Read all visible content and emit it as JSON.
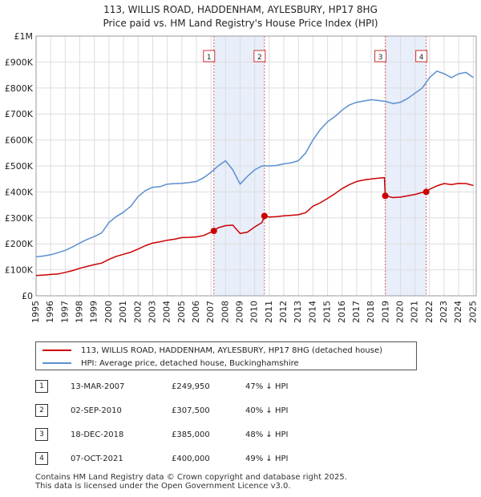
{
  "chart_data": {
    "type": "line",
    "title_line1": "113, WILLIS ROAD, HADDENHAM, AYLESBURY, HP17 8HG",
    "title_line2": "Price paid vs. HM Land Registry's House Price Index (HPI)",
    "xlabel": "",
    "ylabel": "",
    "xlim": [
      1995,
      2025.2
    ],
    "ylim": [
      0,
      1000000
    ],
    "grid": true,
    "y_ticks": [
      {
        "value": 0,
        "label": "£0"
      },
      {
        "value": 100000,
        "label": "£100K"
      },
      {
        "value": 200000,
        "label": "£200K"
      },
      {
        "value": 300000,
        "label": "£300K"
      },
      {
        "value": 400000,
        "label": "£400K"
      },
      {
        "value": 500000,
        "label": "£500K"
      },
      {
        "value": 600000,
        "label": "£600K"
      },
      {
        "value": 700000,
        "label": "£700K"
      },
      {
        "value": 800000,
        "label": "£800K"
      },
      {
        "value": 900000,
        "label": "£900K"
      },
      {
        "value": 1000000,
        "label": "£1M"
      }
    ],
    "x_ticks": [
      "1995",
      "1996",
      "1997",
      "1998",
      "1999",
      "2000",
      "2001",
      "2002",
      "2003",
      "2004",
      "2005",
      "2006",
      "2007",
      "2008",
      "2009",
      "2010",
      "2011",
      "2012",
      "2013",
      "2014",
      "2015",
      "2016",
      "2017",
      "2018",
      "2019",
      "2020",
      "2021",
      "2022",
      "2023",
      "2024",
      "2025"
    ],
    "shaded_ranges": [
      {
        "from": 2007.2,
        "to": 2010.67
      },
      {
        "from": 2018.96,
        "to": 2021.77
      }
    ],
    "series": [
      {
        "name": "113, WILLIS ROAD, HADDENHAM, AYLESBURY, HP17 8HG (detached house)",
        "color": "#cc0000",
        "x": [
          1995,
          1995.5,
          1996,
          1996.5,
          1997,
          1997.5,
          1998,
          1998.5,
          1999,
          1999.5,
          2000,
          2000.5,
          2001,
          2001.5,
          2002,
          2002.5,
          2003,
          2003.5,
          2004,
          2004.5,
          2005,
          2005.5,
          2006,
          2006.5,
          2007,
          2007.2,
          2007.5,
          2008,
          2008.5,
          2009,
          2009.5,
          2010,
          2010.5,
          2010.67,
          2011,
          2011.5,
          2012,
          2012.5,
          2013,
          2013.5,
          2014,
          2014.5,
          2015,
          2015.5,
          2016,
          2016.5,
          2017,
          2017.5,
          2018,
          2018.5,
          2018.9,
          2018.96,
          2019.5,
          2020,
          2020.5,
          2021,
          2021.5,
          2021.77,
          2022,
          2022.5,
          2023,
          2023.5,
          2024,
          2024.5,
          2025
        ],
        "values": [
          78000,
          80000,
          82000,
          84000,
          90000,
          97000,
          106000,
          113000,
          120000,
          126000,
          140000,
          152000,
          160000,
          168000,
          180000,
          193000,
          203000,
          208000,
          214000,
          218000,
          224000,
          225000,
          227000,
          232000,
          245000,
          249950,
          262000,
          270000,
          272000,
          240000,
          245000,
          265000,
          282000,
          307500,
          303000,
          305000,
          308000,
          310000,
          312000,
          320000,
          345000,
          358000,
          375000,
          393000,
          413000,
          428000,
          440000,
          446000,
          450000,
          453000,
          455000,
          385000,
          378000,
          380000,
          385000,
          390000,
          398000,
          400000,
          410000,
          423000,
          432000,
          428000,
          433000,
          432000,
          425000
        ]
      },
      {
        "name": "HPI: Average price, detached house, Buckinghamshire",
        "color": "#5b8fd0",
        "x": [
          1995,
          1995.5,
          1996,
          1996.5,
          1997,
          1997.5,
          1998,
          1998.5,
          1999,
          1999.5,
          2000,
          2000.5,
          2001,
          2001.5,
          2002,
          2002.5,
          2003,
          2003.5,
          2004,
          2004.5,
          2005,
          2005.5,
          2006,
          2006.5,
          2007,
          2007.5,
          2008,
          2008.5,
          2009,
          2009.5,
          2010,
          2010.5,
          2011,
          2011.5,
          2012,
          2012.5,
          2013,
          2013.5,
          2014,
          2014.5,
          2015,
          2015.5,
          2016,
          2016.5,
          2017,
          2017.5,
          2018,
          2018.5,
          2019,
          2019.5,
          2020,
          2020.5,
          2021,
          2021.5,
          2022,
          2022.5,
          2023,
          2023.5,
          2024,
          2024.5,
          2025
        ],
        "values": [
          150000,
          153000,
          158000,
          166000,
          175000,
          188000,
          203000,
          217000,
          228000,
          242000,
          282000,
          305000,
          322000,
          345000,
          382000,
          405000,
          418000,
          420000,
          430000,
          432000,
          433000,
          436000,
          440000,
          455000,
          475000,
          500000,
          520000,
          485000,
          430000,
          460000,
          485000,
          500000,
          500000,
          502000,
          508000,
          512000,
          520000,
          550000,
          600000,
          640000,
          670000,
          690000,
          715000,
          735000,
          745000,
          750000,
          755000,
          752000,
          748000,
          740000,
          745000,
          760000,
          780000,
          800000,
          840000,
          865000,
          855000,
          840000,
          855000,
          860000,
          840000
        ]
      }
    ],
    "markers": [
      {
        "id": "1",
        "x": 2007.2,
        "value": 249950
      },
      {
        "id": "2",
        "x": 2010.67,
        "value": 307500
      },
      {
        "id": "3",
        "x": 2018.96,
        "value": 385000
      },
      {
        "id": "4",
        "x": 2021.77,
        "value": 400000
      }
    ]
  },
  "legend": {
    "items": [
      {
        "label": "113, WILLIS ROAD, HADDENHAM, AYLESBURY, HP17 8HG (detached house)",
        "color": "#cc0000"
      },
      {
        "label": "HPI: Average price, detached house, Buckinghamshire",
        "color": "#5b8fd0"
      }
    ]
  },
  "sales": [
    {
      "num": "1",
      "date": "13-MAR-2007",
      "price": "£249,950",
      "pct": "47% ↓ HPI"
    },
    {
      "num": "2",
      "date": "02-SEP-2010",
      "price": "£307,500",
      "pct": "40% ↓ HPI"
    },
    {
      "num": "3",
      "date": "18-DEC-2018",
      "price": "£385,000",
      "pct": "48% ↓ HPI"
    },
    {
      "num": "4",
      "date": "07-OCT-2021",
      "price": "£400,000",
      "pct": "49% ↓ HPI"
    }
  ],
  "footer": {
    "line1": "Contains HM Land Registry data © Crown copyright and database right 2025.",
    "line2": "This data is licensed under the Open Government Licence v3.0."
  }
}
